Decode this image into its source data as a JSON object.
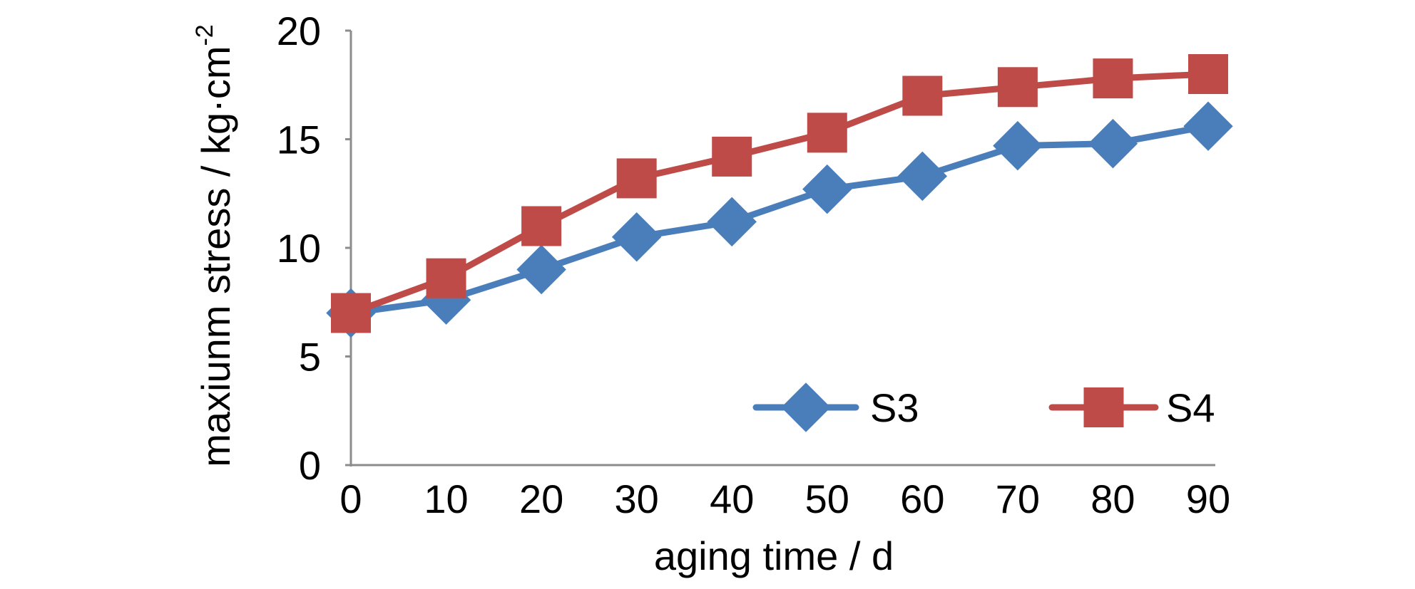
{
  "chart_data": {
    "type": "line",
    "title": "",
    "xlabel": "aging time / d",
    "ylabel": "maxiunm stress / kg·cm",
    "ylabel_superscript": "-2",
    "x": [
      0,
      10,
      20,
      30,
      40,
      50,
      60,
      70,
      80,
      90
    ],
    "x_tick_labels": [
      "0",
      "10",
      "20",
      "30",
      "40",
      "50",
      "60",
      "70",
      "80",
      "90"
    ],
    "ylim": [
      0,
      20
    ],
    "y_ticks": [
      0,
      5,
      10,
      15,
      20
    ],
    "y_tick_labels": [
      "0",
      "5",
      "10",
      "15",
      "20"
    ],
    "grid": false,
    "legend_position": "bottom-right",
    "series": [
      {
        "name": "S3",
        "marker": "diamond",
        "color": "#4a7ebb",
        "values": [
          7.0,
          7.6,
          9.0,
          10.5,
          11.2,
          12.7,
          13.3,
          14.7,
          14.8,
          15.6
        ]
      },
      {
        "name": "S4",
        "marker": "square",
        "color": "#be4b48",
        "values": [
          7.0,
          8.6,
          11.0,
          13.2,
          14.2,
          15.3,
          17.0,
          17.4,
          17.8,
          18.0
        ]
      }
    ]
  }
}
